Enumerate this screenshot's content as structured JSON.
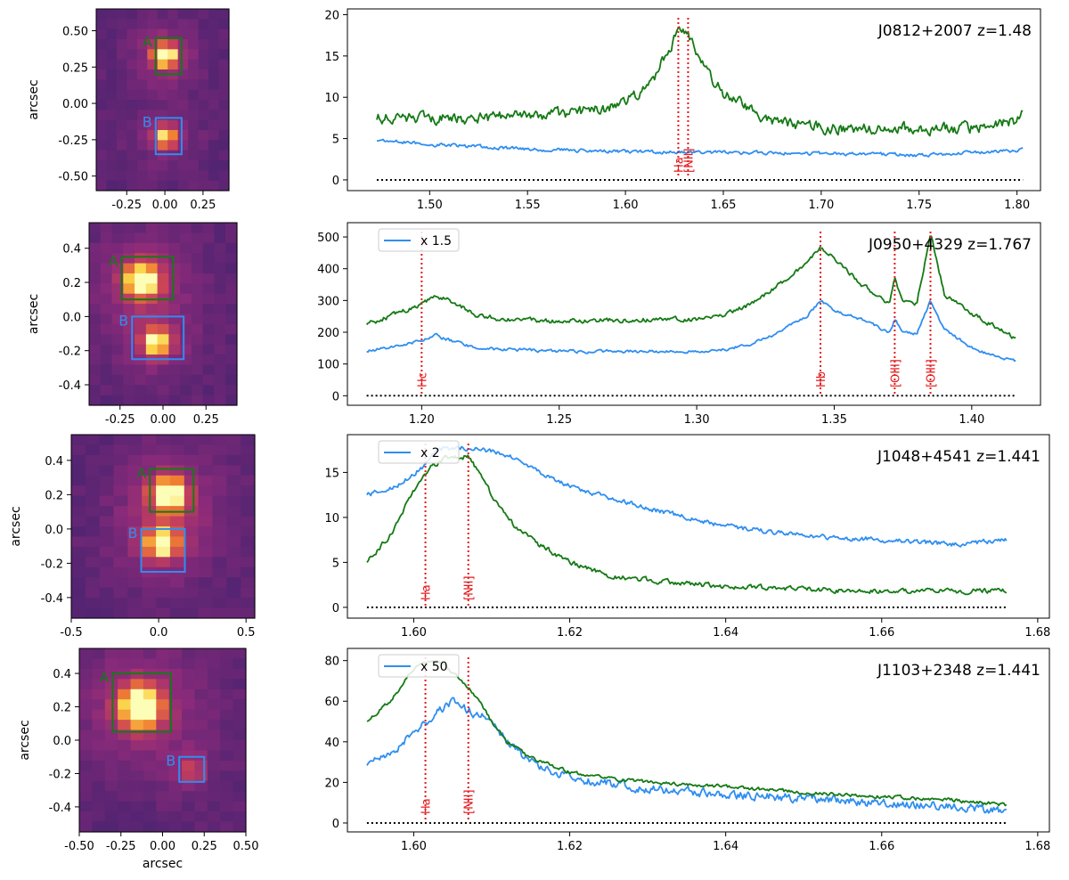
{
  "colors": {
    "green": "#157a15",
    "blue": "#2f8ef0",
    "red": "#e41a1c",
    "zero": "#000000",
    "img_bg": "#3e1f61",
    "img_dim": "#4a2370",
    "img_glow": "#8a2a7a",
    "img_mid": "#c8415a",
    "img_hot": "#f07e32",
    "img_core": "#fbd248",
    "img_peak": "#fcfdb6"
  },
  "chart_data": [
    {
      "type": "image",
      "object": "J0812+2007",
      "ylabel": "arcsec",
      "xlabel": "",
      "xlim": [
        -0.45,
        0.42
      ],
      "ylim": [
        -0.6,
        0.65
      ],
      "xticks": [
        "-0.25",
        "0.00",
        "0.25"
      ],
      "xtick_values": [
        -0.25,
        0.0,
        0.25
      ],
      "yticks": [
        "-0.50",
        "-0.25",
        "0.00",
        "0.25",
        "0.50"
      ],
      "ytick_values": [
        -0.5,
        -0.25,
        0.0,
        0.25,
        0.5
      ],
      "boxes": [
        {
          "label": "A",
          "color": "green",
          "x0": -0.06,
          "x1": 0.11,
          "y0": 0.2,
          "y1": 0.45
        },
        {
          "label": "B",
          "color": "blue",
          "x0": -0.06,
          "x1": 0.11,
          "y0": -0.35,
          "y1": -0.1
        }
      ],
      "sources": [
        {
          "x": 0.0,
          "y": 0.33,
          "amp": 1.0,
          "sigma": 0.05
        },
        {
          "x": 0.0,
          "y": -0.23,
          "amp": 0.65,
          "sigma": 0.05
        }
      ]
    },
    {
      "type": "line",
      "title": "J0812+2007   z=1.48",
      "xlim": [
        1.458,
        1.812
      ],
      "ylim": [
        -1.3,
        20.7
      ],
      "xticks": [
        "1.50",
        "1.55",
        "1.60",
        "1.65",
        "1.70",
        "1.75",
        "1.80"
      ],
      "xtick_values": [
        1.5,
        1.55,
        1.6,
        1.65,
        1.7,
        1.75,
        1.8
      ],
      "yticks": [
        "0",
        "5",
        "10",
        "15",
        "20"
      ],
      "ytick_values": [
        0,
        5,
        10,
        15,
        20
      ],
      "x_range": [
        1.473,
        1.803
      ],
      "legend": "",
      "series": [
        {
          "name": "A",
          "color": "green",
          "x": [
            1.473,
            1.5,
            1.53,
            1.55,
            1.57,
            1.59,
            1.6,
            1.61,
            1.615,
            1.62,
            1.625,
            1.628,
            1.632,
            1.635,
            1.64,
            1.645,
            1.65,
            1.66,
            1.67,
            1.68,
            1.7,
            1.72,
            1.74,
            1.76,
            1.78,
            1.8,
            1.803
          ],
          "y": [
            7.5,
            7.4,
            7.5,
            7.8,
            8.0,
            8.6,
            9.5,
            11.0,
            12.5,
            15.0,
            17.0,
            18.0,
            17.5,
            16.0,
            14.0,
            12.0,
            10.5,
            9.0,
            7.5,
            6.8,
            6.3,
            6.3,
            6.3,
            6.2,
            6.3,
            7.2,
            8.5
          ],
          "noise": 1.1
        },
        {
          "name": "B",
          "color": "blue",
          "x": [
            1.473,
            1.5,
            1.55,
            1.6,
            1.65,
            1.7,
            1.75,
            1.8,
            1.803
          ],
          "y": [
            4.8,
            4.3,
            3.7,
            3.4,
            3.3,
            3.2,
            3.0,
            3.5,
            4.0
          ],
          "noise": 0.35
        }
      ],
      "lines": [
        {
          "label": "Ha",
          "x": 1.627
        },
        {
          "label": "[NII]",
          "x": 1.632
        }
      ]
    },
    {
      "type": "image",
      "object": "J0950+4329",
      "ylabel": "arcsec",
      "xlabel": "",
      "xlim": [
        -0.43,
        0.43
      ],
      "ylim": [
        -0.52,
        0.55
      ],
      "xticks": [
        "-0.25",
        "0.00",
        "0.25"
      ],
      "xtick_values": [
        -0.25,
        0.0,
        0.25
      ],
      "yticks": [
        "-0.4",
        "-0.2",
        "0.0",
        "0.2",
        "0.4"
      ],
      "ytick_values": [
        -0.4,
        -0.2,
        0.0,
        0.2,
        0.4
      ],
      "boxes": [
        {
          "label": "A",
          "color": "green",
          "x0": -0.24,
          "x1": 0.06,
          "y0": 0.1,
          "y1": 0.35
        },
        {
          "label": "B",
          "color": "blue",
          "x0": -0.18,
          "x1": 0.12,
          "y0": -0.25,
          "y1": 0.0
        }
      ],
      "sources": [
        {
          "x": -0.12,
          "y": 0.21,
          "amp": 1.0,
          "sigma": 0.065
        },
        {
          "x": -0.04,
          "y": -0.15,
          "amp": 0.75,
          "sigma": 0.055
        }
      ]
    },
    {
      "type": "line",
      "title": "J0950+4329   z=1.767",
      "xlim": [
        1.173,
        1.425
      ],
      "ylim": [
        -30,
        545
      ],
      "xticks": [
        "1.20",
        "1.25",
        "1.30",
        "1.35",
        "1.40"
      ],
      "xtick_values": [
        1.2,
        1.25,
        1.3,
        1.35,
        1.4
      ],
      "yticks": [
        "0",
        "100",
        "200",
        "300",
        "400",
        "500"
      ],
      "ytick_values": [
        0,
        100,
        200,
        300,
        400,
        500
      ],
      "x_range": [
        1.18,
        1.416
      ],
      "legend": "x 1.5",
      "series": [
        {
          "name": "A",
          "color": "green",
          "x": [
            1.18,
            1.19,
            1.2,
            1.205,
            1.21,
            1.22,
            1.23,
            1.25,
            1.28,
            1.3,
            1.31,
            1.32,
            1.33,
            1.34,
            1.345,
            1.35,
            1.36,
            1.37,
            1.372,
            1.375,
            1.38,
            1.385,
            1.39,
            1.4,
            1.41,
            1.416
          ],
          "y": [
            225,
            255,
            290,
            315,
            300,
            255,
            240,
            235,
            240,
            240,
            255,
            290,
            350,
            420,
            470,
            430,
            350,
            290,
            365,
            300,
            290,
            510,
            320,
            260,
            210,
            180
          ],
          "noise": 12
        },
        {
          "name": "B",
          "color": "blue",
          "x": [
            1.18,
            1.19,
            1.2,
            1.205,
            1.21,
            1.22,
            1.25,
            1.3,
            1.31,
            1.32,
            1.33,
            1.34,
            1.345,
            1.35,
            1.36,
            1.37,
            1.372,
            1.375,
            1.38,
            1.385,
            1.39,
            1.4,
            1.41,
            1.416
          ],
          "y": [
            140,
            155,
            175,
            190,
            175,
            150,
            140,
            140,
            145,
            165,
            200,
            250,
            300,
            270,
            240,
            200,
            240,
            200,
            195,
            300,
            210,
            150,
            120,
            110
          ],
          "noise": 8
        }
      ],
      "lines": [
        {
          "label": "Hc",
          "x": 1.2
        },
        {
          "label": "Hb",
          "x": 1.345
        },
        {
          "label": "[OIII]",
          "x": 1.372
        },
        {
          "label": "[OIII]",
          "x": 1.385
        }
      ]
    },
    {
      "type": "image",
      "object": "J1048+4541",
      "ylabel": "arcsec",
      "xlabel": "",
      "xlim": [
        -0.5,
        0.55
      ],
      "ylim": [
        -0.52,
        0.55
      ],
      "xticks": [
        "-0.5",
        "0.0",
        "0.5"
      ],
      "xtick_values": [
        -0.5,
        0.0,
        0.5
      ],
      "yticks": [
        "-0.4",
        "-0.2",
        "0.0",
        "0.2",
        "0.4"
      ],
      "ytick_values": [
        -0.4,
        -0.2,
        0.0,
        0.2,
        0.4
      ],
      "boxes": [
        {
          "label": "A",
          "color": "green",
          "x0": -0.05,
          "x1": 0.2,
          "y0": 0.1,
          "y1": 0.35
        },
        {
          "label": "B",
          "color": "blue",
          "x0": -0.1,
          "x1": 0.15,
          "y0": -0.25,
          "y1": 0.0
        }
      ],
      "sources": [
        {
          "x": 0.06,
          "y": 0.2,
          "amp": 0.9,
          "sigma": 0.065
        },
        {
          "x": 0.02,
          "y": -0.08,
          "amp": 0.85,
          "sigma": 0.06
        }
      ]
    },
    {
      "type": "line",
      "title": "J1048+4541   z=1.441",
      "xlim": [
        1.5915,
        1.6815
      ],
      "ylim": [
        -1.2,
        19.2
      ],
      "xticks": [
        "1.60",
        "1.62",
        "1.64",
        "1.66",
        "1.68"
      ],
      "xtick_values": [
        1.6,
        1.62,
        1.64,
        1.66,
        1.68
      ],
      "yticks": [
        "0",
        "5",
        "10",
        "15"
      ],
      "ytick_values": [
        0,
        5,
        10,
        15
      ],
      "x_range": [
        1.594,
        1.676
      ],
      "legend": "x 2",
      "series": [
        {
          "name": "A",
          "color": "green",
          "x": [
            1.594,
            1.597,
            1.6,
            1.602,
            1.604,
            1.607,
            1.609,
            1.611,
            1.613,
            1.616,
            1.62,
            1.625,
            1.63,
            1.64,
            1.65,
            1.66,
            1.676
          ],
          "y": [
            5,
            8,
            13,
            15.5,
            16.5,
            16.8,
            14,
            11,
            9,
            7,
            5,
            3.5,
            3,
            2.3,
            2,
            1.8,
            1.8
          ],
          "noise": 0.45
        },
        {
          "name": "B",
          "color": "blue",
          "x": [
            1.594,
            1.598,
            1.601,
            1.603,
            1.606,
            1.609,
            1.612,
            1.615,
            1.62,
            1.63,
            1.64,
            1.65,
            1.66,
            1.67,
            1.676
          ],
          "y": [
            12.5,
            13.5,
            15.5,
            17.5,
            17.8,
            17.5,
            17.0,
            15.5,
            13.5,
            11,
            9,
            8,
            7.5,
            7,
            7.5
          ],
          "noise": 0.45
        }
      ],
      "lines": [
        {
          "label": "Ha",
          "x": 1.6015
        },
        {
          "label": "[NII]",
          "x": 1.607
        }
      ]
    },
    {
      "type": "image",
      "object": "J1103+2348",
      "ylabel": "arcsec",
      "xlabel": "arcsec",
      "xlim": [
        -0.5,
        0.5
      ],
      "ylim": [
        -0.55,
        0.55
      ],
      "xticks": [
        "-0.50",
        "-0.25",
        "0.00",
        "0.25",
        "0.50"
      ],
      "xtick_values": [
        -0.5,
        -0.25,
        0.0,
        0.25,
        0.5
      ],
      "yticks": [
        "-0.4",
        "-0.2",
        "0.0",
        "0.2",
        "0.4"
      ],
      "ytick_values": [
        -0.4,
        -0.2,
        0.0,
        0.2,
        0.4
      ],
      "boxes": [
        {
          "label": "A",
          "color": "green",
          "x0": -0.3,
          "x1": 0.05,
          "y0": 0.05,
          "y1": 0.4
        },
        {
          "label": "B",
          "color": "blue",
          "x0": 0.1,
          "x1": 0.25,
          "y0": -0.25,
          "y1": -0.1
        }
      ],
      "sources": [
        {
          "x": -0.13,
          "y": 0.2,
          "amp": 1.0,
          "sigma": 0.085
        },
        {
          "x": 0.18,
          "y": -0.18,
          "amp": 0.3,
          "sigma": 0.05
        }
      ]
    },
    {
      "type": "line",
      "title": "J1103+2348   z=1.441",
      "xlim": [
        1.5915,
        1.6815
      ],
      "ylim": [
        -4.4,
        86
      ],
      "xticks": [
        "1.60",
        "1.62",
        "1.64",
        "1.66",
        "1.68"
      ],
      "xtick_values": [
        1.6,
        1.62,
        1.64,
        1.66,
        1.68
      ],
      "yticks": [
        "0",
        "20",
        "40",
        "60",
        "80"
      ],
      "ytick_values": [
        0,
        20,
        40,
        60,
        80
      ],
      "x_range": [
        1.594,
        1.676
      ],
      "legend": "x 50",
      "series": [
        {
          "name": "A",
          "color": "green",
          "x": [
            1.594,
            1.597,
            1.6,
            1.602,
            1.604,
            1.606,
            1.608,
            1.61,
            1.612,
            1.615,
            1.62,
            1.625,
            1.63,
            1.64,
            1.65,
            1.66,
            1.67,
            1.676
          ],
          "y": [
            50,
            60,
            76,
            80,
            78,
            70,
            62,
            50,
            40,
            32,
            25,
            22,
            20,
            18,
            15,
            13,
            11,
            9
          ],
          "noise": 1.5
        },
        {
          "name": "B",
          "color": "blue",
          "x": [
            1.594,
            1.598,
            1.601,
            1.603,
            1.605,
            1.607,
            1.609,
            1.612,
            1.615,
            1.62,
            1.63,
            1.64,
            1.65,
            1.66,
            1.67,
            1.676
          ],
          "y": [
            28,
            38,
            48,
            55,
            60,
            55,
            52,
            40,
            30,
            22,
            17,
            14,
            12,
            10,
            8,
            6
          ],
          "noise": 3.5
        }
      ],
      "lines": [
        {
          "label": "Ha",
          "x": 1.6015
        },
        {
          "label": "[NII]",
          "x": 1.607
        }
      ]
    }
  ]
}
